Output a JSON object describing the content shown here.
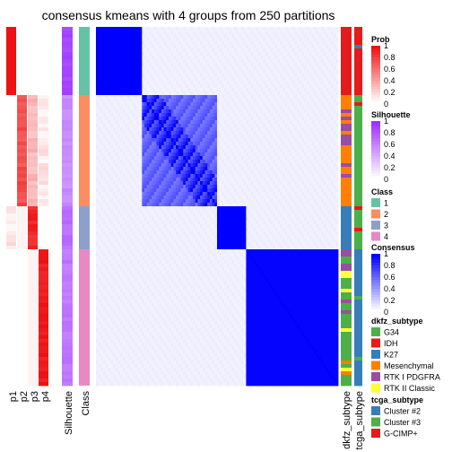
{
  "chart_data": {
    "type": "heatmap",
    "title": "consensus kmeans with 4 groups from 250 partitions",
    "n_samples": 100,
    "column_labels": [
      "p1",
      "p2",
      "p3",
      "p4",
      "Silhouette",
      "Class"
    ],
    "row_annotation_labels": [
      "dkfz_subtype",
      "tcga_subtype"
    ],
    "class_sizes": [
      19,
      31,
      12,
      38
    ],
    "consensus_within_class": [
      1.0,
      0.72,
      1.0,
      0.98
    ],
    "consensus_background": 0.05,
    "silhouette_by_class": [
      0.9,
      0.55,
      0.7,
      0.65
    ],
    "prob_by_class": [
      [
        1.0,
        0.0,
        0.0,
        0.0
      ],
      [
        0.0,
        0.75,
        0.3,
        0.1
      ],
      [
        0.1,
        0.05,
        0.9,
        0.0
      ],
      [
        0.0,
        0.0,
        0.05,
        0.97
      ]
    ],
    "legends": [
      {
        "title": "Prob",
        "kind": "gradient",
        "colors": [
          "#ffffff",
          "#ee1111"
        ],
        "ticks": [
          "1",
          "0.8",
          "0.6",
          "0.4",
          "0.2",
          "0"
        ]
      },
      {
        "title": "Silhouette",
        "kind": "gradient",
        "colors": [
          "#ffffff",
          "#9b30ff"
        ],
        "ticks": [
          "1",
          "0.8",
          "0.6",
          "0.4",
          "0.2",
          "0"
        ]
      },
      {
        "title": "Class",
        "kind": "discrete",
        "items": [
          {
            "label": "1",
            "color": "#66c2a5"
          },
          {
            "label": "2",
            "color": "#fc8d62"
          },
          {
            "label": "3",
            "color": "#8da0cb"
          },
          {
            "label": "4",
            "color": "#e78ac3"
          }
        ]
      },
      {
        "title": "Consensus",
        "kind": "gradient",
        "colors": [
          "#ffffff",
          "#0000ff"
        ],
        "ticks": [
          "1",
          "0.8",
          "0.6",
          "0.4",
          "0.2",
          "0"
        ]
      },
      {
        "title": "dkfz_subtype",
        "kind": "discrete",
        "items": [
          {
            "label": "G34",
            "color": "#4daf4a"
          },
          {
            "label": "IDH",
            "color": "#e41a1c"
          },
          {
            "label": "K27",
            "color": "#377eb8"
          },
          {
            "label": "Mesenchymal",
            "color": "#ff7f00"
          },
          {
            "label": "RTK I PDGFRA",
            "color": "#984ea3"
          },
          {
            "label": "RTK II Classic",
            "color": "#ffff33"
          }
        ]
      },
      {
        "title": "tcga_subtype",
        "kind": "discrete",
        "items": [
          {
            "label": "Cluster #2",
            "color": "#377eb8"
          },
          {
            "label": "Cluster #3",
            "color": "#4daf4a"
          },
          {
            "label": "G-CIMP+",
            "color": "#e41a1c"
          }
        ]
      }
    ]
  }
}
